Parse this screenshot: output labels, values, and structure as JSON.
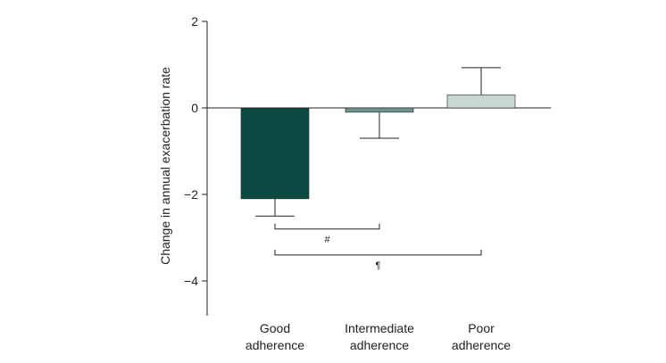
{
  "chart_data": {
    "type": "bar",
    "ylabel": "Change in annual exacerbation rate",
    "ylim": [
      -4.8,
      2
    ],
    "yticks": [
      "2",
      "0",
      "−2",
      "−4"
    ],
    "ytick_values": [
      2,
      0,
      -2,
      -4
    ],
    "categories": [
      {
        "line1": "Good",
        "line2": "adherence"
      },
      {
        "line1": "Intermediate",
        "line2": "adherence"
      },
      {
        "line1": "Poor",
        "line2": "adherence"
      }
    ],
    "values": [
      -2.1,
      -0.1,
      0.3
    ],
    "error_bars": [
      -2.5,
      -0.7,
      0.93
    ],
    "colors": [
      "#0b4a42",
      "#6f948f",
      "#c7d8d4"
    ],
    "comparisons": [
      {
        "from": 0,
        "to": 1,
        "y": -2.8,
        "label": "#"
      },
      {
        "from": 0,
        "to": 2,
        "y": -3.4,
        "label": "¶"
      }
    ],
    "grid": false,
    "legend": "none"
  }
}
